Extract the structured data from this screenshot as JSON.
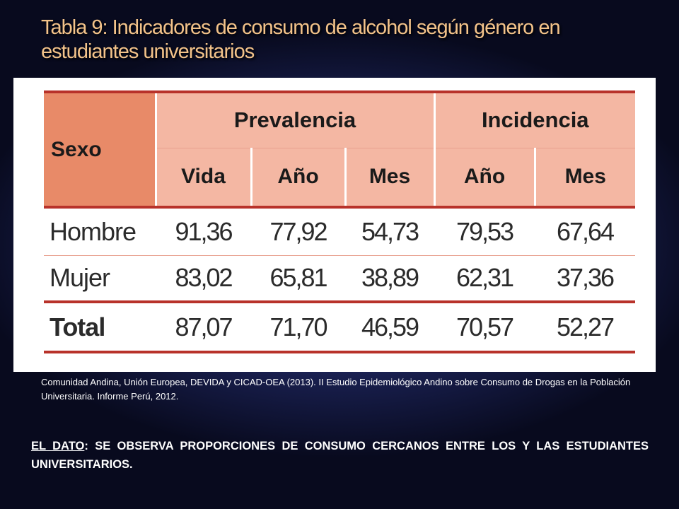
{
  "slide": {
    "title": "Tabla 9:  Indicadores de consumo de alcohol según género en estudiantes universitarios"
  },
  "table": {
    "header_sexo": "Sexo",
    "group_prevalencia": "Prevalencia",
    "group_incidencia": "Incidencia",
    "subheaders": [
      "Vida",
      "Año",
      "Mes",
      "Año",
      "Mes"
    ],
    "rows": [
      {
        "label": "Hombre",
        "values": [
          "91,36",
          "77,92",
          "54,73",
          "79,53",
          "67,64"
        ]
      },
      {
        "label": "Mujer",
        "values": [
          "83,02",
          "65,81",
          "38,89",
          "62,31",
          "37,36"
        ]
      },
      {
        "label": "Total",
        "values": [
          "87,07",
          "71,70",
          "46,59",
          "70,57",
          "52,27"
        ]
      }
    ]
  },
  "citation": "Comunidad Andina, Unión Europea, DEVIDA y CICAD-OEA (2013). II Estudio Epidemiológico Andino sobre Consumo de Drogas en la Población Universitaria. Informe Perú, 2012.",
  "note": {
    "lead": " EL DATO",
    "text": ": SE OBSERVA PROPORCIONES DE CONSUMO CERCANOS ENTRE LOS Y LAS ESTUDIANTES UNIVERSITARIOS."
  },
  "colors": {
    "title": "#f3c38a",
    "header_light": "#f4b7a3",
    "header_dark": "#e88a68",
    "rule": "#b8322a"
  }
}
